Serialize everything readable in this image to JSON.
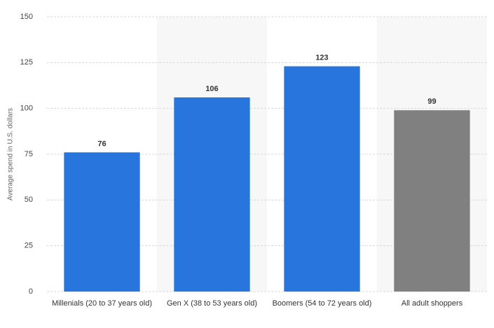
{
  "chart_data": {
    "type": "bar",
    "y_label": "Average spend in U.S. dollars",
    "categories": [
      "Millenials (20 to 37 years old)",
      "Gen X (38 to 53 years old)",
      "Boomers (54 to 72 years old)",
      "All adult shoppers"
    ],
    "values": [
      76,
      106,
      123,
      99
    ],
    "colors": [
      "#2876dd",
      "#2876dd",
      "#2876dd",
      "#808080"
    ],
    "ylim": [
      0,
      150
    ],
    "yticks": [
      0,
      25,
      50,
      75,
      100,
      125,
      150
    ],
    "grid": true
  }
}
